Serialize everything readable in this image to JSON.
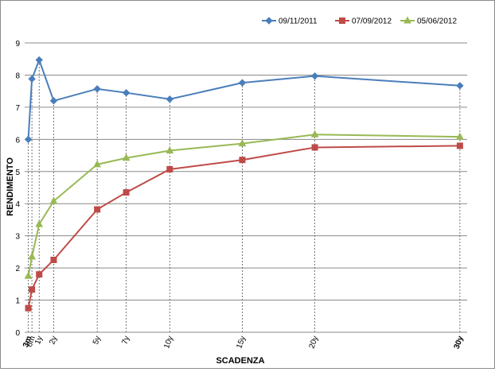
{
  "chart_data": {
    "type": "line",
    "title": "",
    "xlabel": "SCADENZA",
    "ylabel": "RENDIMENTO",
    "ylim": [
      0,
      9
    ],
    "yticks": [
      0,
      1,
      2,
      3,
      4,
      5,
      6,
      7,
      8,
      9
    ],
    "x": [
      0.25,
      0.5,
      1,
      2,
      5,
      7,
      10,
      15,
      20,
      30
    ],
    "x_tick_labels": [
      "3m",
      "6m",
      "1y",
      "2y",
      "5y",
      "7y",
      "10y",
      "15y",
      "20y",
      "30y"
    ],
    "xlim": [
      0,
      30.5
    ],
    "grid": {
      "horizontal": true,
      "vertical_dashed_at_points": true
    },
    "legend_position": "top-right",
    "series": [
      {
        "name": "09/11/2011",
        "color": "#4a7ebb",
        "marker": "diamond",
        "values": [
          6.0,
          7.88,
          8.47,
          7.2,
          7.57,
          7.45,
          7.25,
          7.76,
          7.97,
          7.67
        ]
      },
      {
        "name": "07/09/2012",
        "color": "#be4b48",
        "marker": "square",
        "values": [
          0.75,
          1.33,
          1.8,
          2.25,
          3.82,
          4.35,
          5.07,
          5.36,
          5.75,
          5.8
        ]
      },
      {
        "name": "05/06/2012",
        "color": "#98b954",
        "marker": "triangle",
        "values": [
          1.75,
          2.35,
          3.36,
          4.08,
          5.22,
          5.42,
          5.65,
          5.87,
          6.15,
          6.08
        ]
      }
    ]
  }
}
